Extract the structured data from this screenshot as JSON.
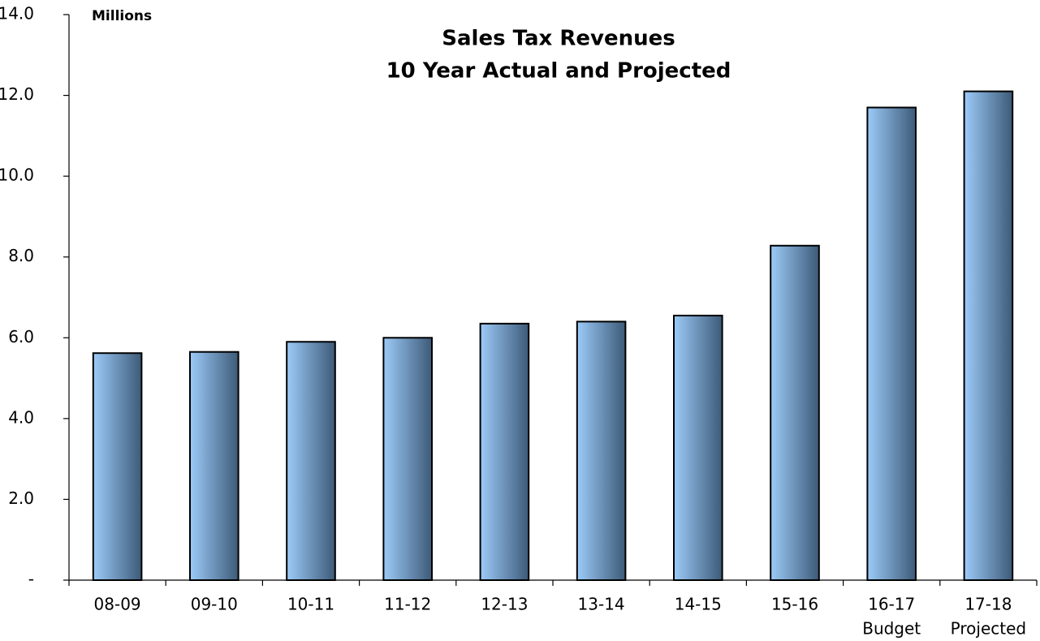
{
  "chart_data": {
    "type": "bar",
    "title": "Sales Tax Revenues",
    "subtitle": "10 Year Actual and Projected",
    "ylabel": "Millions",
    "categories": [
      [
        "08-09"
      ],
      [
        "09-10"
      ],
      [
        "10-11"
      ],
      [
        "11-12"
      ],
      [
        "12-13"
      ],
      [
        "13-14"
      ],
      [
        "14-15"
      ],
      [
        "15-16"
      ],
      [
        "16-17",
        "Budget"
      ],
      [
        "17-18",
        "Projected"
      ]
    ],
    "values": [
      5.62,
      5.65,
      5.9,
      6.0,
      6.35,
      6.4,
      6.55,
      8.28,
      11.7,
      12.1
    ],
    "color": [
      "#9ccbf8",
      "#3d5a78"
    ],
    "ylim": [
      0,
      14
    ],
    "yticks": [
      {
        "value": 0,
        "label": "-"
      },
      {
        "value": 2,
        "label": "2.0"
      },
      {
        "value": 4,
        "label": "4.0"
      },
      {
        "value": 6,
        "label": "6.0"
      },
      {
        "value": 8,
        "label": "8.0"
      },
      {
        "value": 10,
        "label": "10.0"
      },
      {
        "value": 12,
        "label": "12.0"
      },
      {
        "value": 14,
        "label": "14.0"
      }
    ],
    "grid": false
  }
}
